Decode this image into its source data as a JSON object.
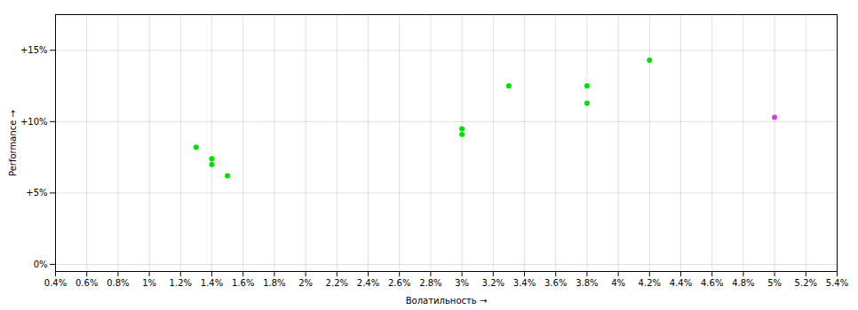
{
  "chart_data": {
    "type": "scatter",
    "xlabel": "Волатильность",
    "ylabel": "Performance",
    "series": [
      {
        "color": "#00dd00",
        "x": [
          0.013,
          0.014,
          0.014,
          0.015,
          0.03,
          0.03,
          0.033,
          0.038,
          0.038,
          0.042
        ],
        "y": [
          0.082,
          0.074,
          0.07,
          0.062,
          0.095,
          0.091,
          0.125,
          0.125,
          0.113,
          0.143
        ]
      },
      {
        "color": "#cc44cc",
        "x": [
          0.05
        ],
        "y": [
          0.103
        ]
      }
    ],
    "xlim": [
      0.004,
      0.054
    ],
    "ylim": [
      -0.005,
      0.175
    ],
    "xticks": [
      {
        "value": 0.004,
        "label": "0.4%"
      },
      {
        "value": 0.006,
        "label": "0.6%"
      },
      {
        "value": 0.008,
        "label": "0.8%"
      },
      {
        "value": 0.01,
        "label": "1%"
      },
      {
        "value": 0.012,
        "label": "1.2%"
      },
      {
        "value": 0.014,
        "label": "1.4%"
      },
      {
        "value": 0.016,
        "label": "1.6%"
      },
      {
        "value": 0.018,
        "label": "1.8%"
      },
      {
        "value": 0.02,
        "label": "2%"
      },
      {
        "value": 0.022,
        "label": "2.2%"
      },
      {
        "value": 0.024,
        "label": "2.4%"
      },
      {
        "value": 0.026,
        "label": "2.6%"
      },
      {
        "value": 0.028,
        "label": "2.8%"
      },
      {
        "value": 0.03,
        "label": "3%"
      },
      {
        "value": 0.032,
        "label": "3.2%"
      },
      {
        "value": 0.034,
        "label": "3.4%"
      },
      {
        "value": 0.036,
        "label": "3.6%"
      },
      {
        "value": 0.038,
        "label": "3.8%"
      },
      {
        "value": 0.04,
        "label": "4%"
      },
      {
        "value": 0.042,
        "label": "4.2%"
      },
      {
        "value": 0.044,
        "label": "4.4%"
      },
      {
        "value": 0.046,
        "label": "4.6%"
      },
      {
        "value": 0.048,
        "label": "4.8%"
      },
      {
        "value": 0.05,
        "label": "5%"
      },
      {
        "value": 0.052,
        "label": "5.2%"
      },
      {
        "value": 0.054,
        "label": "5.4%"
      }
    ],
    "yticks": [
      {
        "value": 0.0,
        "label": "0%"
      },
      {
        "value": 0.05,
        "label": "+5%"
      },
      {
        "value": 0.1,
        "label": "+10%"
      },
      {
        "value": 0.15,
        "label": "+15%"
      }
    ],
    "grid": true
  }
}
